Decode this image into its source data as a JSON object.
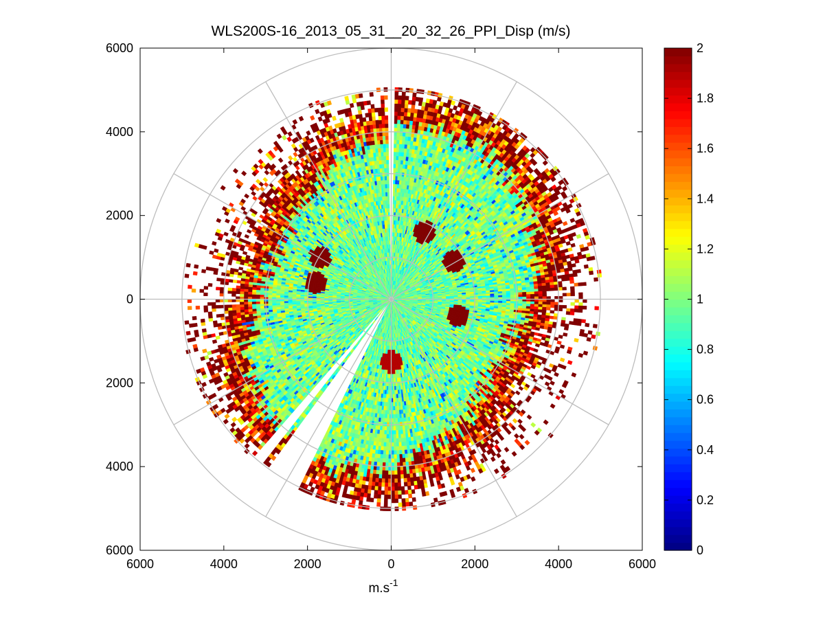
{
  "chart_data": {
    "type": "heatmap",
    "subtype": "polar-ppi",
    "title": "WLS200S-16_2013_05_31__20_32_26_PPI_Disp (m/s)",
    "xlabel": "m.s",
    "xlabel_exponent": "-1",
    "ylabel": "",
    "xlim": [
      -6000,
      6000
    ],
    "ylim": [
      -6000,
      6000
    ],
    "x_ticks": [
      -6000,
      -4000,
      -2000,
      0,
      2000,
      4000,
      6000
    ],
    "x_tick_labels": [
      "6000",
      "4000",
      "2000",
      "0",
      "2000",
      "4000",
      "6000"
    ],
    "y_ticks": [
      6000,
      4000,
      2000,
      0,
      -2000,
      -4000,
      -6000
    ],
    "y_tick_labels": [
      "6000",
      "4000",
      "2000",
      "0",
      "2000",
      "4000",
      "6000"
    ],
    "range_rings_m": [
      1000,
      2000,
      3000,
      4000,
      5000,
      6000
    ],
    "spoke_angles_deg": [
      0,
      30,
      60,
      90,
      120,
      150,
      180,
      210,
      240,
      270,
      300,
      330
    ],
    "max_range_m": 6000,
    "colorbar": {
      "colormap": "jet",
      "clim": [
        0,
        2
      ],
      "ticks": [
        0,
        0.2,
        0.4,
        0.6,
        0.8,
        1,
        1.2,
        1.4,
        1.6,
        1.8,
        2
      ],
      "tick_labels": [
        "0",
        "0.2",
        "0.4",
        "0.6",
        "0.8",
        "1",
        "1.2",
        "1.4",
        "1.6",
        "1.8",
        "2"
      ]
    },
    "field_description_values": {
      "near_range_mean": 0.95,
      "mid_range_mean": 1.0,
      "far_range_mean": 1.6,
      "outer_edge_value": 2.0
    },
    "blind_sectors_bearing_deg": [
      [
        206,
        212
      ],
      [
        212,
        216
      ],
      [
        218,
        221
      ]
    ],
    "high_features": [
      {
        "x": -1700,
        "y": 1000,
        "value": 2.0
      },
      {
        "x": -1800,
        "y": 400,
        "value": 2.0
      },
      {
        "x": 800,
        "y": 1600,
        "value": 2.0
      },
      {
        "x": 1500,
        "y": 900,
        "value": 2.0
      },
      {
        "x": 1600,
        "y": -400,
        "value": 2.0
      },
      {
        "x": 0,
        "y": -1500,
        "value": 1.9
      }
    ]
  }
}
